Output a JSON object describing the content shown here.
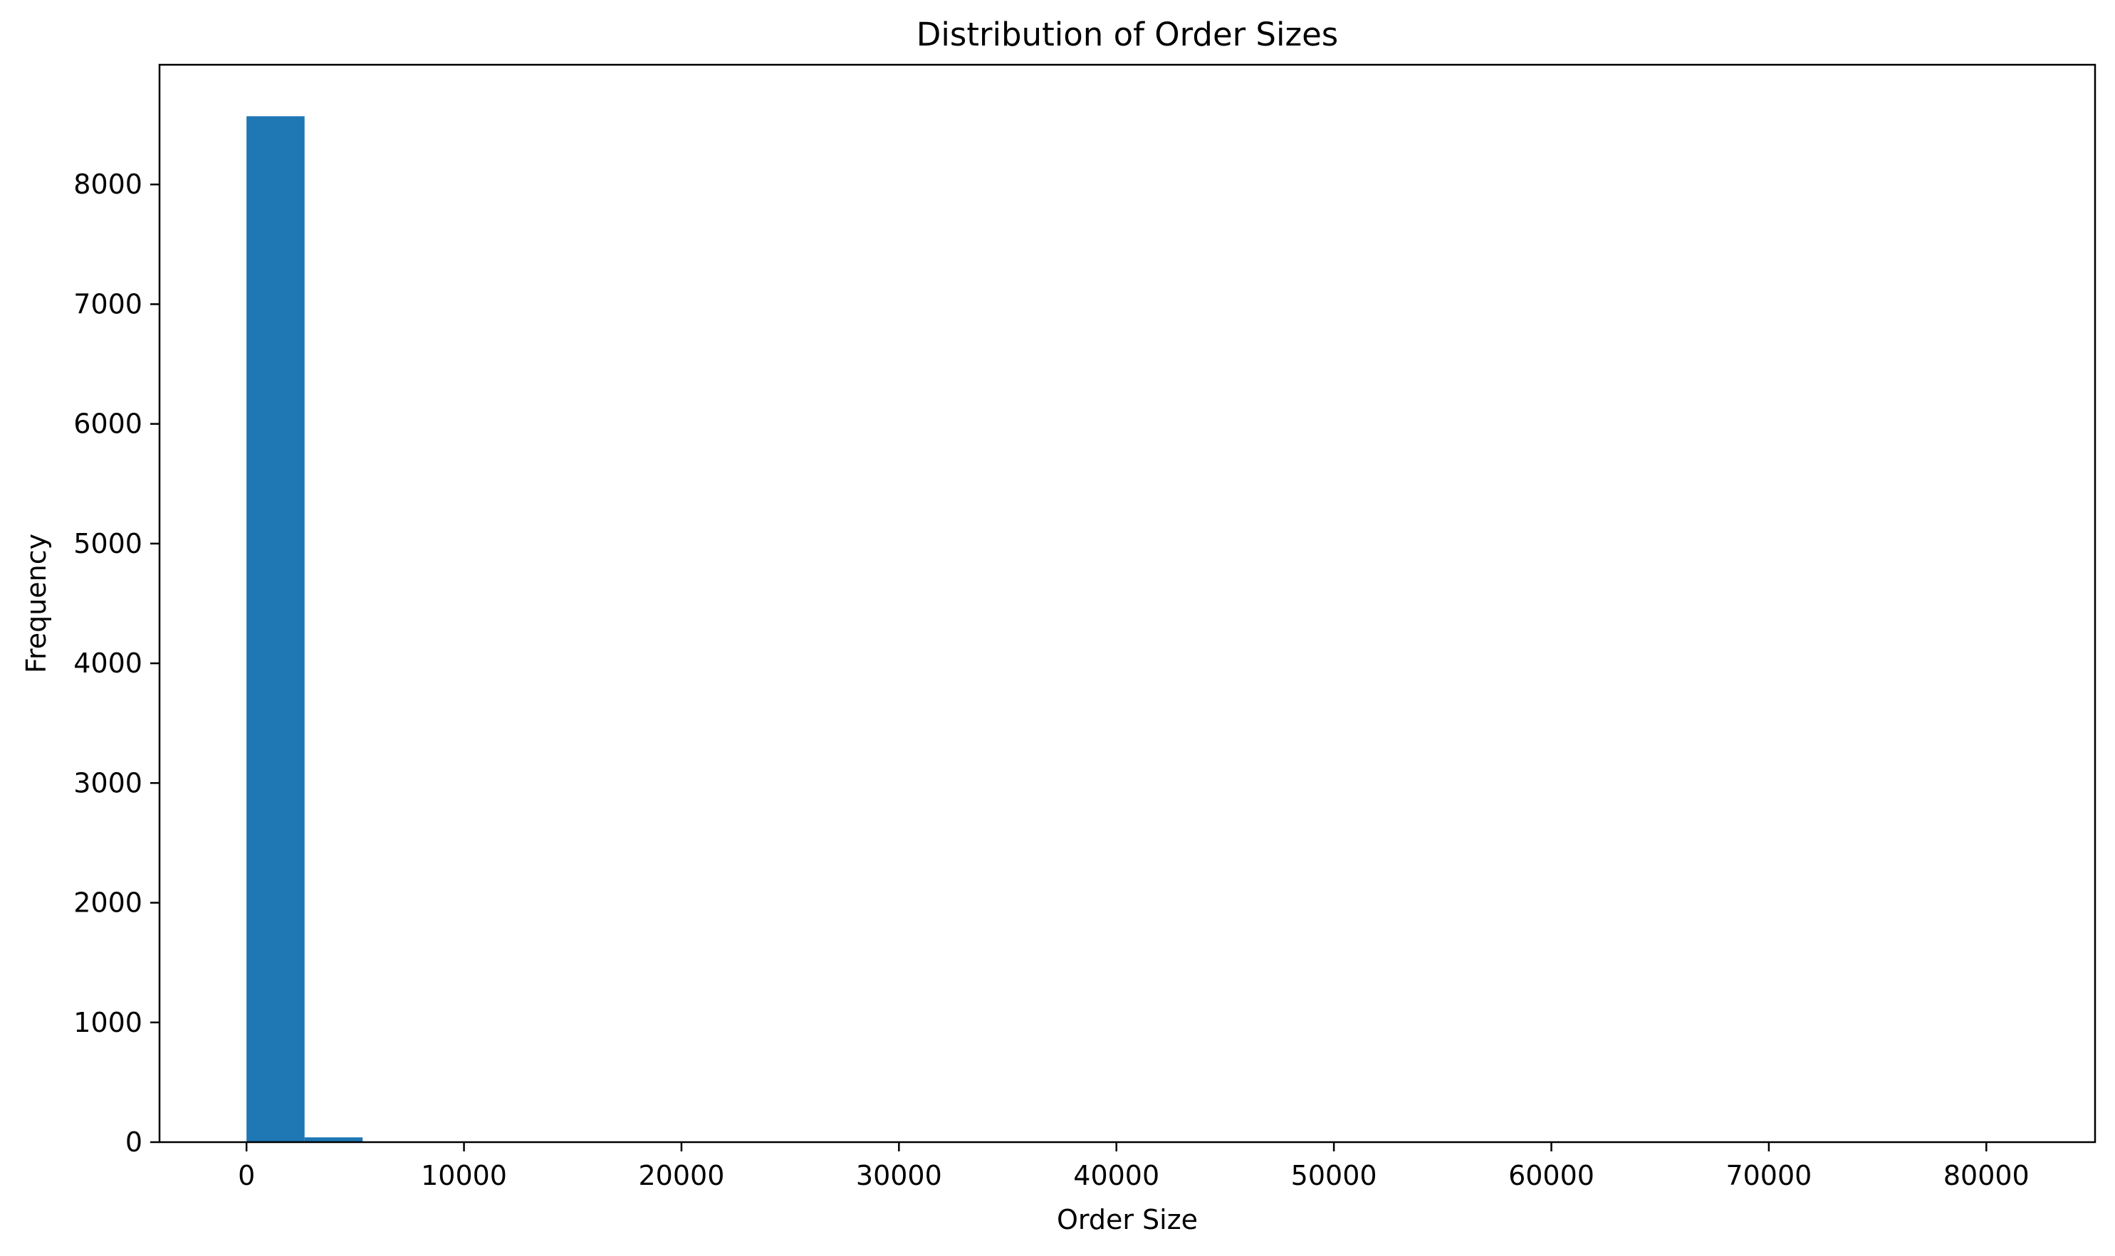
{
  "chart_data": {
    "type": "bar",
    "title": "Distribution of Order Sizes",
    "xlabel": "Order Size",
    "ylabel": "Frequency",
    "xlim": [
      -4000,
      85000
    ],
    "ylim": [
      0,
      9000
    ],
    "xticks": [
      0,
      10000,
      20000,
      30000,
      40000,
      50000,
      60000,
      70000,
      80000
    ],
    "yticks": [
      0,
      1000,
      2000,
      3000,
      4000,
      5000,
      6000,
      7000,
      8000
    ],
    "bin_edges": [
      0,
      2670,
      5340,
      8010,
      10680,
      13350,
      16020,
      18690,
      21360,
      24030,
      26700,
      29370,
      32040,
      34710,
      37380,
      40050,
      42720,
      45390,
      48060,
      50730,
      53400,
      56070,
      58740,
      61410,
      64080,
      66750,
      69420,
      72090,
      74760,
      77430,
      80100
    ],
    "counts": [
      8570,
      40,
      2,
      1,
      1,
      1,
      0,
      0,
      0,
      0,
      0,
      0,
      0,
      0,
      0,
      0,
      0,
      0,
      0,
      0,
      0,
      0,
      0,
      0,
      0,
      0,
      0,
      0,
      0,
      1
    ],
    "bar_color": "#1f77b4",
    "grid": false,
    "legend": false
  }
}
